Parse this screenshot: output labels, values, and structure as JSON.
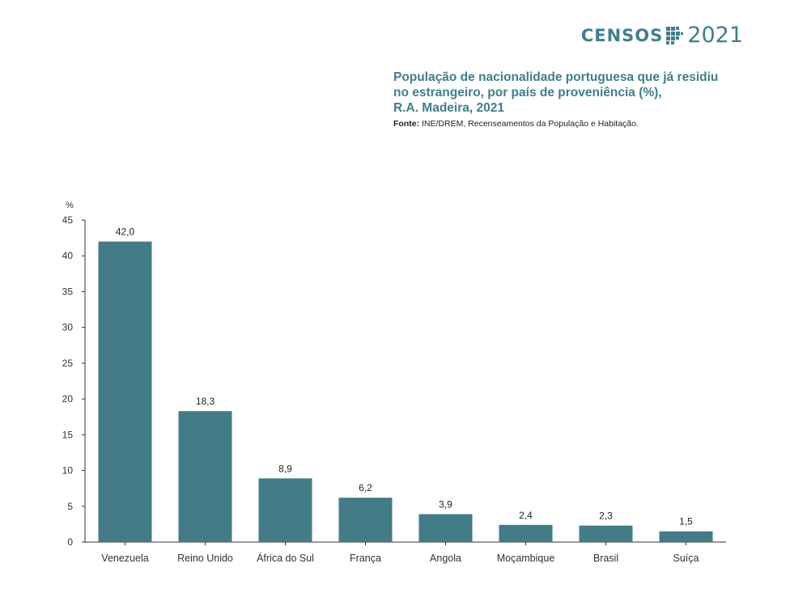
{
  "logo": {
    "word": "CENSOS",
    "year": "2021"
  },
  "header": {
    "title_lines": [
      "População de nacionalidade portuguesa que já residiu",
      "no estrangeiro, por país de proveniência (%),",
      "R.A. Madeira, 2021"
    ],
    "source_label": "Fonte:",
    "source_text": "INE/DREM, Recenseamentos da População e Habitação."
  },
  "colors": {
    "bar": "#427c86",
    "accent": "#3f7f8c",
    "axis": "#333333"
  },
  "chart_data": {
    "type": "bar",
    "title": "População de nacionalidade portuguesa que já residiu no estrangeiro, por país de proveniência (%), R.A. Madeira, 2021",
    "categories": [
      "Venezuela",
      "Reino Unido",
      "África do Sul",
      "França",
      "Angola",
      "Moçambique",
      "Brasil",
      "Suíça"
    ],
    "values": [
      42.0,
      18.3,
      8.9,
      6.2,
      3.9,
      2.4,
      2.3,
      1.5
    ],
    "value_labels": [
      "42,0",
      "18,3",
      "8,9",
      "6,2",
      "3,9",
      "2,4",
      "2,3",
      "1,5"
    ],
    "ylabel": "%",
    "xlabel": "",
    "ylim": [
      0,
      45
    ],
    "yticks": [
      0,
      5,
      10,
      15,
      20,
      25,
      30,
      35,
      40,
      45
    ],
    "grid": false,
    "legend": "none"
  }
}
